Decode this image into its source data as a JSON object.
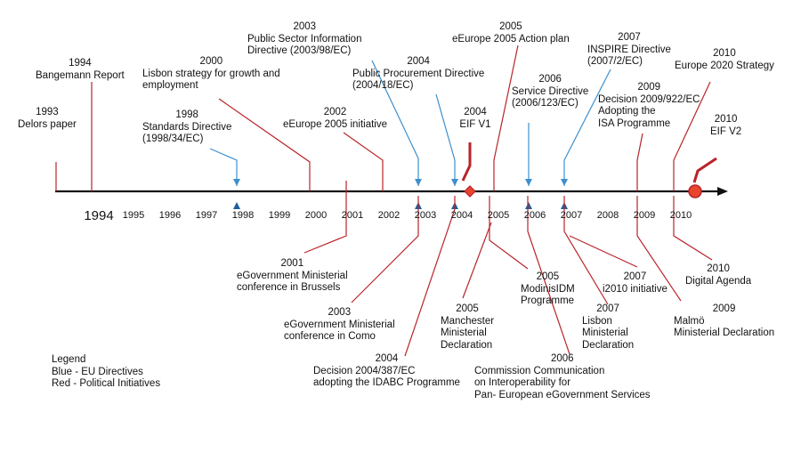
{
  "colors": {
    "blue": "#3d8fce",
    "red": "#b8242a",
    "axis": "#111111",
    "node": "#e8442e"
  },
  "axis_years": [
    "1994",
    "1995",
    "1996",
    "1997",
    "1998",
    "1999",
    "2000",
    "2001",
    "2002",
    "2003",
    "2004",
    "2005",
    "2006",
    "2007",
    "2008",
    "2009",
    "2010"
  ],
  "legend": {
    "title": "Legend",
    "items": [
      "Blue - EU Directives",
      "Red - Political Initiatives"
    ]
  },
  "events": [
    {
      "id": "delors",
      "year": "1993",
      "lines": [
        "Delors paper"
      ],
      "color": "red"
    },
    {
      "id": "bangemann",
      "year": "1994",
      "lines": [
        "Bangemann Report"
      ],
      "color": "red"
    },
    {
      "id": "lisbon-strategy",
      "year": "2000",
      "lines": [
        "Lisbon strategy for growth and",
        "employment"
      ],
      "color": "red"
    },
    {
      "id": "standards",
      "year": "1998",
      "lines": [
        "Standards Directive",
        "(1998/34/EC)"
      ],
      "color": "blue"
    },
    {
      "id": "psi",
      "year": "2003",
      "lines": [
        "Public Sector Information",
        "Directive (2003/98/EC)"
      ],
      "color": "blue"
    },
    {
      "id": "eeurope2005-init",
      "year": "2002",
      "lines": [
        "eEurope 2005 initiative"
      ],
      "color": "red"
    },
    {
      "id": "procurement",
      "year": "2004",
      "lines": [
        "Public Procurement Directive",
        "(2004/18/EC)"
      ],
      "color": "blue"
    },
    {
      "id": "eif1",
      "year": "2004",
      "lines": [
        "EIF V1"
      ],
      "color": "red"
    },
    {
      "id": "eeurope2005-plan",
      "year": "2005",
      "lines": [
        "eEurope 2005 Action plan"
      ],
      "color": "red"
    },
    {
      "id": "service",
      "year": "2006",
      "lines": [
        "Service Directive",
        "(2006/123/EC)"
      ],
      "color": "blue"
    },
    {
      "id": "inspire",
      "year": "2007",
      "lines": [
        "INSPIRE Directive",
        "(2007/2/EC)"
      ],
      "color": "blue"
    },
    {
      "id": "decision2009",
      "year": "2009",
      "lines": [
        "Decision 2009/922/EC",
        "Adopting the",
        "ISA Programme"
      ],
      "color": "red"
    },
    {
      "id": "europe2020",
      "year": "2010",
      "lines": [
        "Europe 2020 Strategy"
      ],
      "color": "red"
    },
    {
      "id": "eif2",
      "year": "2010",
      "lines": [
        "EIF V2"
      ],
      "color": "red"
    },
    {
      "id": "egov2001",
      "year": "2001",
      "lines": [
        "eGovernment Ministerial",
        "conference in Brussels"
      ],
      "color": "red"
    },
    {
      "id": "egov2003",
      "year": "2003",
      "lines": [
        "eGovernment Ministerial",
        "conference in Como"
      ],
      "color": "red"
    },
    {
      "id": "idabc",
      "year": "2004",
      "lines": [
        "Decision 2004/387/EC",
        "adopting the IDABC Programme"
      ],
      "color": "red"
    },
    {
      "id": "manchester",
      "year": "2005",
      "lines": [
        "Manchester",
        "Ministerial",
        "Declaration"
      ],
      "color": "red"
    },
    {
      "id": "modinis",
      "year": "2005",
      "lines": [
        "ModinisIDM",
        "Programme"
      ],
      "color": "red"
    },
    {
      "id": "commission2006",
      "year": "2006",
      "lines": [
        "Commission Communication",
        "on Interoperability for",
        "Pan- European eGovernment Services"
      ],
      "color": "red"
    },
    {
      "id": "lisbon2007",
      "year": "2007",
      "lines": [
        "Lisbon",
        "Ministerial",
        "Declaration"
      ],
      "color": "red"
    },
    {
      "id": "i2010",
      "year": "2007",
      "lines": [
        "i2010 initiative"
      ],
      "color": "red"
    },
    {
      "id": "malmo",
      "year": "2009",
      "lines": [
        "Malmö",
        "Ministerial Declaration"
      ],
      "color": "red"
    },
    {
      "id": "digital-agenda",
      "year": "2010",
      "lines": [
        "Digital Agenda"
      ],
      "color": "red"
    }
  ]
}
